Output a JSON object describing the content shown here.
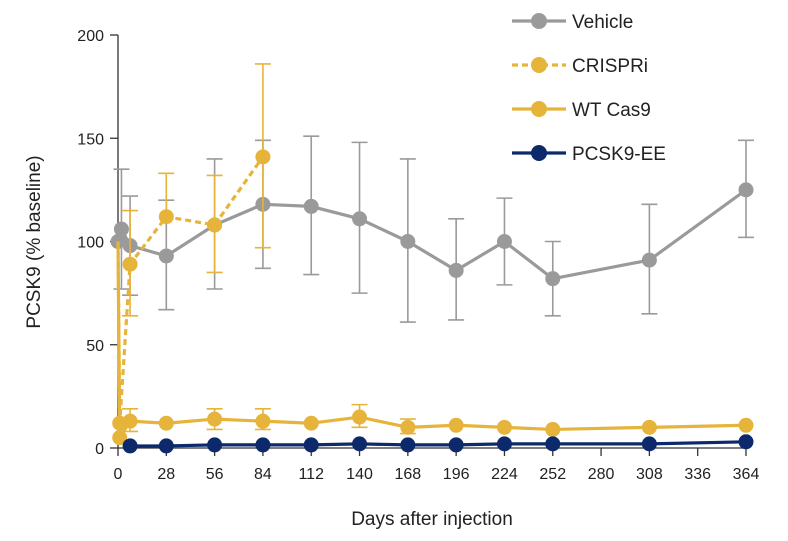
{
  "chart_data": {
    "type": "line",
    "title": "",
    "xlabel": "Days after injection",
    "ylabel": "PCSK9 (% baseline)",
    "xlim": [
      0,
      364
    ],
    "ylim": [
      0,
      200
    ],
    "xticks": [
      0,
      28,
      56,
      84,
      112,
      140,
      168,
      196,
      224,
      252,
      280,
      308,
      336,
      364
    ],
    "yticks": [
      0,
      50,
      100,
      150,
      200
    ],
    "legend_position": "top-right",
    "series": [
      {
        "name": "Vehicle",
        "color": "#9a9a9a",
        "dashed": false,
        "x": [
          0,
          2,
          7,
          28,
          56,
          84,
          112,
          140,
          168,
          196,
          224,
          252,
          308,
          364
        ],
        "y": [
          100,
          106,
          98,
          93,
          108,
          118,
          117,
          111,
          100,
          86,
          100,
          82,
          91,
          125
        ],
        "err_low": [
          null,
          77,
          74,
          67,
          77,
          87,
          84,
          75,
          61,
          62,
          79,
          64,
          65,
          102
        ],
        "err_high": [
          null,
          135,
          122,
          120,
          140,
          149,
          151,
          148,
          140,
          111,
          121,
          100,
          118,
          149
        ]
      },
      {
        "name": "CRISPRi",
        "color": "#e6b43a",
        "dashed": true,
        "x": [
          0,
          1,
          7,
          28,
          56,
          84
        ],
        "y": [
          100,
          12,
          89,
          112,
          108,
          141
        ],
        "err_low": [
          null,
          null,
          64,
          null,
          85,
          97
        ],
        "err_high": [
          null,
          null,
          115,
          133,
          132,
          186
        ]
      },
      {
        "name": "WT Cas9",
        "color": "#e6b43a",
        "dashed": false,
        "x": [
          0,
          1,
          7,
          28,
          56,
          84,
          112,
          140,
          168,
          196,
          224,
          252,
          308,
          364
        ],
        "y": [
          100,
          5,
          13,
          12,
          14,
          13,
          12,
          15,
          10,
          11,
          10,
          9,
          10,
          11
        ],
        "err_low": [
          null,
          null,
          8,
          null,
          9,
          9,
          null,
          10,
          7,
          null,
          null,
          null,
          null,
          null
        ],
        "err_high": [
          null,
          null,
          19,
          null,
          19,
          19,
          null,
          21,
          14,
          null,
          null,
          null,
          null,
          null
        ]
      },
      {
        "name": "PCSK9-EE",
        "color": "#0c2a6b",
        "dashed": false,
        "x": [
          7,
          28,
          56,
          84,
          112,
          140,
          168,
          196,
          224,
          252,
          308,
          364
        ],
        "y": [
          1,
          1,
          1.5,
          1.5,
          1.5,
          2,
          1.5,
          1.5,
          2,
          2,
          2,
          3
        ],
        "err_low": [],
        "err_high": []
      }
    ]
  }
}
